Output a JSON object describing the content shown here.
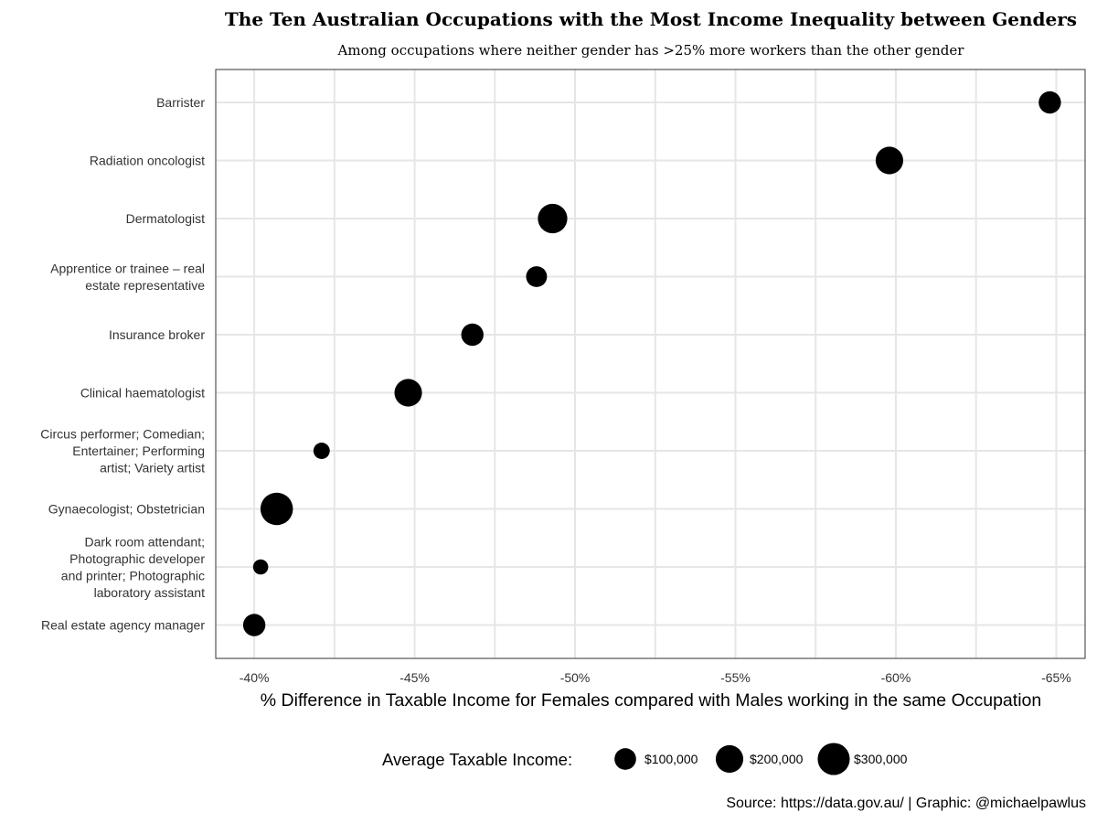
{
  "chart_data": {
    "type": "scatter",
    "title": "The Ten Australian Occupations with the Most Income Inequality between Genders",
    "subtitle": "Among occupations where neither gender has >25% more workers than the other gender",
    "xlabel": "% Difference in Taxable Income for Females compared with Males working in the same Occupation",
    "ylabel": "",
    "xlim": [
      -38.8,
      -65.9
    ],
    "x_ticks": [
      -40,
      -45,
      -50,
      -55,
      -60,
      -65
    ],
    "x_tick_labels": [
      "-40%",
      "-45%",
      "-50%",
      "-55%",
      "-60%",
      "-65%"
    ],
    "grid": true,
    "legend_position": "bottom",
    "size_legend": {
      "title": "Average Taxable Income:",
      "entries": [
        {
          "label": "$100,000",
          "value": 100000
        },
        {
          "label": "$200,000",
          "value": 200000
        },
        {
          "label": "$300,000",
          "value": 300000
        }
      ]
    },
    "categories": [
      [
        "Barrister"
      ],
      [
        "Radiation oncologist"
      ],
      [
        "Dermatologist"
      ],
      [
        "Apprentice or trainee – real",
        "estate representative"
      ],
      [
        "Insurance broker"
      ],
      [
        "Clinical haematologist"
      ],
      [
        "Circus performer; Comedian;",
        "Entertainer; Performing",
        "artist; Variety artist"
      ],
      [
        "Gynaecologist; Obstetrician"
      ],
      [
        "Dark room attendant;",
        "Photographic developer",
        "and printer; Photographic",
        "laboratory assistant"
      ],
      [
        "Real estate agency manager"
      ]
    ],
    "points": [
      {
        "x": -64.8,
        "size": 110000
      },
      {
        "x": -59.8,
        "size": 200000
      },
      {
        "x": -49.3,
        "size": 240000
      },
      {
        "x": -48.8,
        "size": 90000
      },
      {
        "x": -46.8,
        "size": 110000
      },
      {
        "x": -44.8,
        "size": 200000
      },
      {
        "x": -42.1,
        "size": 40000
      },
      {
        "x": -40.7,
        "size": 310000
      },
      {
        "x": -40.2,
        "size": 30000
      },
      {
        "x": -40.0,
        "size": 110000
      }
    ],
    "source": "Source: https://data.gov.au/ | Graphic: @michaelpawlus"
  }
}
